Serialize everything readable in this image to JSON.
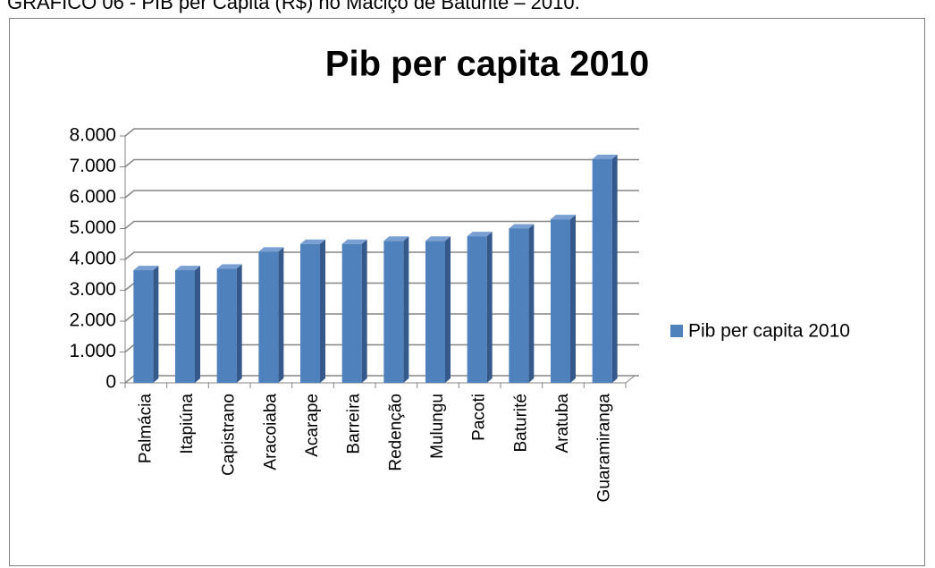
{
  "caption": "GRÁFICO 06 - PIB per Capita (R$) no Maciço de Baturité – 2010.",
  "chart_data": {
    "type": "bar3d",
    "title": "Pib per capita 2010",
    "categories": [
      "Palmácia",
      "Itapiúna",
      "Capistrano",
      "Aracoiaba",
      "Acarape",
      "Barreira",
      "Redenção",
      "Mulungu",
      "Pacoti",
      "Baturité",
      "Aratuba",
      "Guaramiranga"
    ],
    "series": [
      {
        "name": "Pib per capita 2010",
        "color": "#4f81bd",
        "values": [
          3650,
          3650,
          3700,
          4250,
          4500,
          4500,
          4600,
          4600,
          4750,
          5000,
          5300,
          7250
        ]
      }
    ],
    "ylim": [
      0,
      8000
    ],
    "yticks": [
      0,
      {
        "value": 1000,
        "label": "1.000"
      },
      {
        "value": 2000,
        "label": "2.000"
      },
      {
        "value": 3000,
        "label": "3.000"
      },
      {
        "value": 4000,
        "label": "4.000"
      },
      {
        "value": 5000,
        "label": "5.000"
      },
      {
        "value": 6000,
        "label": "6.000"
      },
      {
        "value": 7000,
        "label": "7.000"
      },
      {
        "value": 8000,
        "label": "8.000"
      }
    ],
    "grid": true,
    "legend": "right"
  }
}
